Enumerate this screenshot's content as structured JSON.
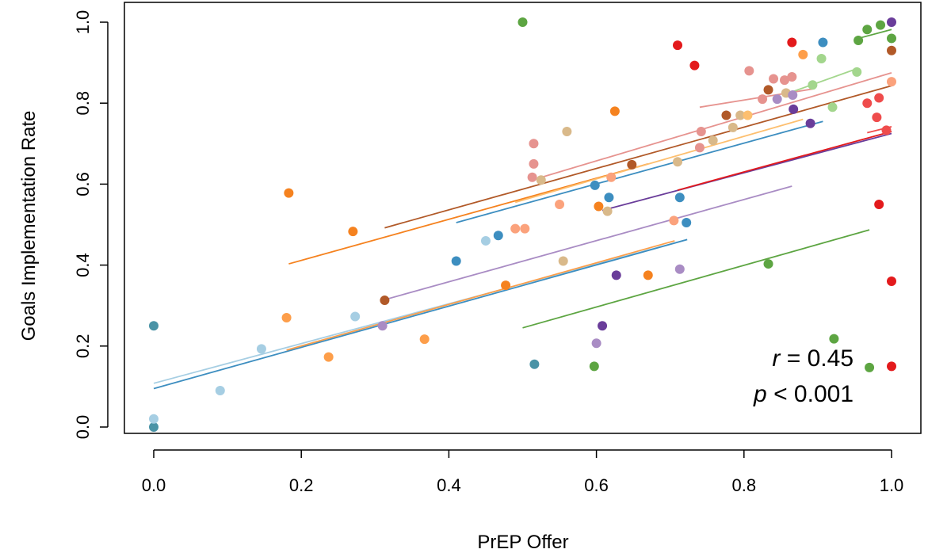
{
  "chart_data": {
    "type": "scatter",
    "xlabel": "PrEP Offer",
    "ylabel": "Goals Implementation Rate",
    "xlim": [
      -0.05,
      1.06
    ],
    "ylim": [
      -0.04,
      1.03
    ],
    "x_ticks": [
      0.0,
      0.2,
      0.4,
      0.6,
      0.8,
      1.0
    ],
    "y_ticks": [
      0.0,
      0.2,
      0.4,
      0.6,
      0.8,
      1.0
    ],
    "x_tick_labels": [
      "0.0",
      "0.2",
      "0.4",
      "0.6",
      "0.8",
      "1.0"
    ],
    "y_tick_labels": [
      "0.0",
      "0.2",
      "0.4",
      "0.6",
      "0.8",
      "1.0"
    ],
    "grid": false,
    "annotations": {
      "r_symbol": "r",
      "r_value": " = 0.45",
      "p_symbol": "p",
      "p_value": " < 0.001"
    },
    "points": [
      {
        "x": 0.0,
        "y": 0.25,
        "color": "#4a93a6"
      },
      {
        "x": 0.0,
        "y": 0.0,
        "color": "#4a93a6"
      },
      {
        "x": 0.0,
        "y": 0.02,
        "color": "#a6cee3"
      },
      {
        "x": 0.09,
        "y": 0.09,
        "color": "#a6cee3"
      },
      {
        "x": 0.146,
        "y": 0.193,
        "color": "#a6cee3"
      },
      {
        "x": 0.18,
        "y": 0.27,
        "color": "#fd9e4a"
      },
      {
        "x": 0.183,
        "y": 0.578,
        "color": "#f5821f"
      },
      {
        "x": 0.237,
        "y": 0.173,
        "color": "#fd9e4a"
      },
      {
        "x": 0.27,
        "y": 0.483,
        "color": "#f5821f"
      },
      {
        "x": 0.273,
        "y": 0.273,
        "color": "#a6cee3"
      },
      {
        "x": 0.31,
        "y": 0.25,
        "color": "#a98cc4"
      },
      {
        "x": 0.313,
        "y": 0.313,
        "color": "#b15928"
      },
      {
        "x": 0.367,
        "y": 0.217,
        "color": "#fd9e4a"
      },
      {
        "x": 0.41,
        "y": 0.41,
        "color": "#3d8ec0"
      },
      {
        "x": 0.45,
        "y": 0.46,
        "color": "#a6cee3"
      },
      {
        "x": 0.467,
        "y": 0.473,
        "color": "#3d8ec0"
      },
      {
        "x": 0.477,
        "y": 0.35,
        "color": "#f5821f"
      },
      {
        "x": 0.49,
        "y": 0.49,
        "color": "#fba27c"
      },
      {
        "x": 0.503,
        "y": 0.49,
        "color": "#fba27c"
      },
      {
        "x": 0.5,
        "y": 1.0,
        "color": "#5da542"
      },
      {
        "x": 0.513,
        "y": 0.617,
        "color": "#e6938f"
      },
      {
        "x": 0.515,
        "y": 0.65,
        "color": "#e6938f"
      },
      {
        "x": 0.515,
        "y": 0.7,
        "color": "#e6938f"
      },
      {
        "x": 0.516,
        "y": 0.155,
        "color": "#4a93a6"
      },
      {
        "x": 0.525,
        "y": 0.61,
        "color": "#d9b98a"
      },
      {
        "x": 0.55,
        "y": 0.55,
        "color": "#fba27c"
      },
      {
        "x": 0.555,
        "y": 0.41,
        "color": "#d9b98a"
      },
      {
        "x": 0.56,
        "y": 0.73,
        "color": "#d9b98a"
      },
      {
        "x": 0.597,
        "y": 0.15,
        "color": "#5da542"
      },
      {
        "x": 0.598,
        "y": 0.597,
        "color": "#3d8ec0"
      },
      {
        "x": 0.6,
        "y": 0.207,
        "color": "#a98cc4"
      },
      {
        "x": 0.603,
        "y": 0.545,
        "color": "#f5821f"
      },
      {
        "x": 0.608,
        "y": 0.25,
        "color": "#6a3d9a"
      },
      {
        "x": 0.615,
        "y": 0.533,
        "color": "#d9b98a"
      },
      {
        "x": 0.617,
        "y": 0.567,
        "color": "#3d8ec0"
      },
      {
        "x": 0.62,
        "y": 0.617,
        "color": "#fba27c"
      },
      {
        "x": 0.625,
        "y": 0.78,
        "color": "#f5821f"
      },
      {
        "x": 0.627,
        "y": 0.375,
        "color": "#6a3d9a"
      },
      {
        "x": 0.648,
        "y": 0.648,
        "color": "#b15928"
      },
      {
        "x": 0.67,
        "y": 0.375,
        "color": "#f5821f"
      },
      {
        "x": 0.705,
        "y": 0.51,
        "color": "#fba27c"
      },
      {
        "x": 0.71,
        "y": 0.655,
        "color": "#d9b98a"
      },
      {
        "x": 0.71,
        "y": 0.943,
        "color": "#e31a1c"
      },
      {
        "x": 0.713,
        "y": 0.567,
        "color": "#3d8ec0"
      },
      {
        "x": 0.713,
        "y": 0.39,
        "color": "#a98cc4"
      },
      {
        "x": 0.722,
        "y": 0.505,
        "color": "#3d8ec0"
      },
      {
        "x": 0.733,
        "y": 0.893,
        "color": "#e31a1c"
      },
      {
        "x": 0.74,
        "y": 0.69,
        "color": "#e6938f"
      },
      {
        "x": 0.742,
        "y": 0.73,
        "color": "#e6938f"
      },
      {
        "x": 0.758,
        "y": 0.708,
        "color": "#d9b98a"
      },
      {
        "x": 0.776,
        "y": 0.77,
        "color": "#b15928"
      },
      {
        "x": 0.785,
        "y": 0.74,
        "color": "#d9b98a"
      },
      {
        "x": 0.795,
        "y": 0.77,
        "color": "#d9b98a"
      },
      {
        "x": 0.805,
        "y": 0.77,
        "color": "#fdbf6f"
      },
      {
        "x": 0.807,
        "y": 0.88,
        "color": "#e6938f"
      },
      {
        "x": 0.825,
        "y": 0.81,
        "color": "#e6938f"
      },
      {
        "x": 0.833,
        "y": 0.403,
        "color": "#5da542"
      },
      {
        "x": 0.833,
        "y": 0.833,
        "color": "#b15928"
      },
      {
        "x": 0.84,
        "y": 0.86,
        "color": "#e6938f"
      },
      {
        "x": 0.845,
        "y": 0.81,
        "color": "#a98cc4"
      },
      {
        "x": 0.855,
        "y": 0.857,
        "color": "#e6938f"
      },
      {
        "x": 0.857,
        "y": 0.825,
        "color": "#d9b98a"
      },
      {
        "x": 0.865,
        "y": 0.865,
        "color": "#e6938f"
      },
      {
        "x": 0.866,
        "y": 0.82,
        "color": "#a98cc4"
      },
      {
        "x": 0.865,
        "y": 0.95,
        "color": "#e31a1c"
      },
      {
        "x": 0.867,
        "y": 0.785,
        "color": "#6a3d9a"
      },
      {
        "x": 0.88,
        "y": 0.92,
        "color": "#fd9e4a"
      },
      {
        "x": 0.89,
        "y": 0.75,
        "color": "#6a3d9a"
      },
      {
        "x": 0.893,
        "y": 0.845,
        "color": "#a3d68d"
      },
      {
        "x": 0.905,
        "y": 0.91,
        "color": "#a3d68d"
      },
      {
        "x": 0.907,
        "y": 0.95,
        "color": "#3d8ec0"
      },
      {
        "x": 0.922,
        "y": 0.218,
        "color": "#5da542"
      },
      {
        "x": 0.92,
        "y": 0.79,
        "color": "#a3d68d"
      },
      {
        "x": 0.953,
        "y": 0.877,
        "color": "#a3d68d"
      },
      {
        "x": 0.955,
        "y": 0.955,
        "color": "#5da542"
      },
      {
        "x": 0.967,
        "y": 0.8,
        "color": "#ef4c4c"
      },
      {
        "x": 0.967,
        "y": 0.982,
        "color": "#5da542"
      },
      {
        "x": 0.97,
        "y": 0.147,
        "color": "#5da542"
      },
      {
        "x": 0.98,
        "y": 0.765,
        "color": "#ef4c4c"
      },
      {
        "x": 0.983,
        "y": 0.813,
        "color": "#ef4c4c"
      },
      {
        "x": 0.983,
        "y": 0.55,
        "color": "#e31a1c"
      },
      {
        "x": 0.985,
        "y": 0.993,
        "color": "#5da542"
      },
      {
        "x": 0.993,
        "y": 0.733,
        "color": "#ef4c4c"
      },
      {
        "x": 1.0,
        "y": 1.0,
        "color": "#6a3d9a"
      },
      {
        "x": 1.0,
        "y": 0.96,
        "color": "#5da542"
      },
      {
        "x": 1.0,
        "y": 0.93,
        "color": "#b15928"
      },
      {
        "x": 1.0,
        "y": 0.853,
        "color": "#fba27c"
      },
      {
        "x": 1.0,
        "y": 0.36,
        "color": "#e31a1c"
      },
      {
        "x": 1.0,
        "y": 0.15,
        "color": "#e31a1c"
      }
    ],
    "fit_lines": [
      {
        "x1": 0.0,
        "y1": 0.108,
        "x2": 0.723,
        "y2": 0.463,
        "color": "#a6cee3"
      },
      {
        "x1": 0.0,
        "y1": 0.095,
        "x2": 0.723,
        "y2": 0.463,
        "color": "#3d8ec0"
      },
      {
        "x1": 0.18,
        "y1": 0.19,
        "x2": 0.706,
        "y2": 0.46,
        "color": "#fd9e4a"
      },
      {
        "x1": 0.183,
        "y1": 0.403,
        "x2": 0.67,
        "y2": 0.65,
        "color": "#f5821f"
      },
      {
        "x1": 0.31,
        "y1": 0.313,
        "x2": 0.865,
        "y2": 0.595,
        "color": "#a98cc4"
      },
      {
        "x1": 0.313,
        "y1": 0.492,
        "x2": 1.0,
        "y2": 0.843,
        "color": "#b15928"
      },
      {
        "x1": 0.41,
        "y1": 0.505,
        "x2": 0.907,
        "y2": 0.755,
        "color": "#3d8ec0"
      },
      {
        "x1": 0.5,
        "y1": 0.245,
        "x2": 0.97,
        "y2": 0.487,
        "color": "#5da542"
      },
      {
        "x1": 0.513,
        "y1": 0.61,
        "x2": 1.0,
        "y2": 0.875,
        "color": "#e6938f"
      },
      {
        "x1": 0.49,
        "y1": 0.555,
        "x2": 0.88,
        "y2": 0.76,
        "color": "#fdbf6f"
      },
      {
        "x1": 0.608,
        "y1": 0.535,
        "x2": 1.0,
        "y2": 0.725,
        "color": "#6a3d9a"
      },
      {
        "x1": 0.71,
        "y1": 0.585,
        "x2": 1.0,
        "y2": 0.73,
        "color": "#e31a1c"
      },
      {
        "x1": 0.74,
        "y1": 0.79,
        "x2": 0.893,
        "y2": 0.835,
        "color": "#e6938f"
      },
      {
        "x1": 0.853,
        "y1": 0.82,
        "x2": 0.953,
        "y2": 0.885,
        "color": "#a3d68d"
      },
      {
        "x1": 0.955,
        "y1": 0.96,
        "x2": 1.0,
        "y2": 0.982,
        "color": "#5da542"
      },
      {
        "x1": 0.967,
        "y1": 0.727,
        "x2": 1.0,
        "y2": 0.742,
        "color": "#ef4c4c"
      }
    ]
  }
}
